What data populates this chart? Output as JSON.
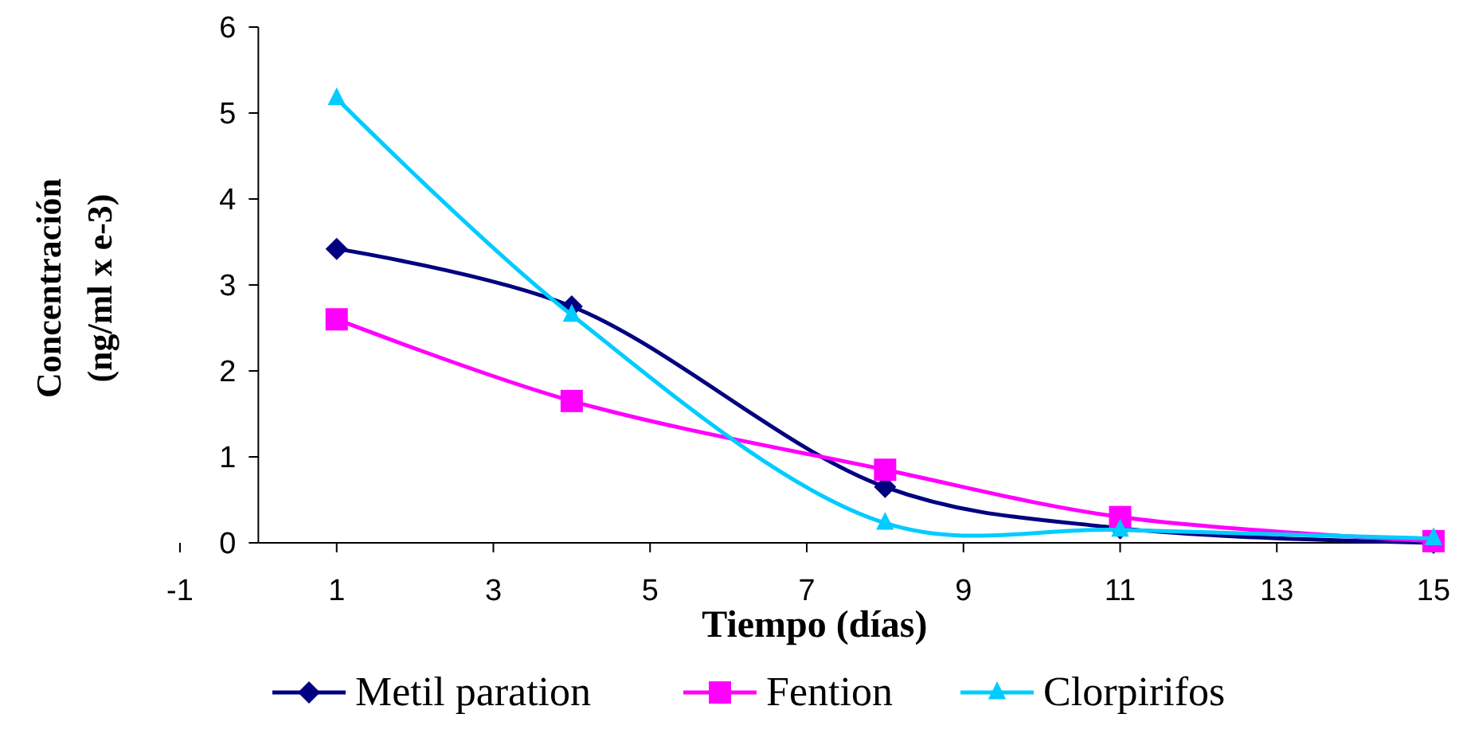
{
  "chart_data": {
    "type": "line",
    "xlabel": "Tiempo (días)",
    "ylabel": "Concentración\n(ng/ml x e-3)",
    "x": [
      1,
      4,
      8,
      11,
      15
    ],
    "xlim": [
      -1,
      15
    ],
    "xticks": [
      -1,
      1,
      3,
      5,
      7,
      9,
      11,
      13,
      15
    ],
    "ylim": [
      0,
      6
    ],
    "yticks": [
      0,
      1,
      2,
      3,
      4,
      5,
      6
    ],
    "grid": false,
    "legend": "bottom",
    "line_style": "solid",
    "series": [
      {
        "name": "Metil paration",
        "color": "#000080",
        "marker": "diamond",
        "values": [
          3.42,
          2.75,
          0.65,
          0.17,
          0.0
        ]
      },
      {
        "name": "Fention",
        "color": "#ff00ff",
        "marker": "square",
        "values": [
          2.6,
          1.65,
          0.85,
          0.3,
          0.02
        ]
      },
      {
        "name": "Clorpirifos",
        "color": "#00ccff",
        "marker": "triangle",
        "values": [
          5.17,
          2.65,
          0.23,
          0.15,
          0.05
        ]
      }
    ]
  }
}
